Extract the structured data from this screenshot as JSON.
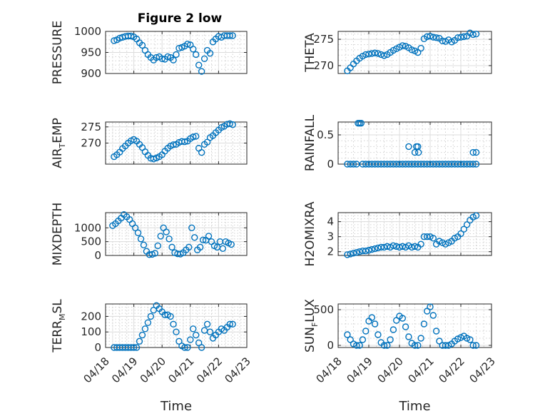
{
  "figure": {
    "title": "Figure 2 low",
    "marker_color": "#0072BD",
    "x_tick_labels": [
      "04/18",
      "04/19",
      "04/20",
      "04/21",
      "04/22",
      "04/23"
    ]
  },
  "chart_data": [
    {
      "type": "scatter",
      "title": "Figure 2 low",
      "ylabel": "PRESSURE",
      "xlabel": "",
      "xlim": [
        0,
        5
      ],
      "ylim": [
        900,
        1000
      ],
      "yticks": [
        900,
        950,
        1000
      ],
      "grid": true,
      "x": [
        0.3,
        0.4,
        0.5,
        0.6,
        0.7,
        0.8,
        0.9,
        1.0,
        1.1,
        1.2,
        1.3,
        1.4,
        1.5,
        1.6,
        1.7,
        1.8,
        1.9,
        2.0,
        2.1,
        2.2,
        2.3,
        2.4,
        2.5,
        2.6,
        2.7,
        2.8,
        2.9,
        3.0,
        3.1,
        3.2,
        3.3,
        3.4,
        3.5,
        3.6,
        3.7,
        3.8,
        3.9,
        4.0,
        4.1,
        4.2,
        4.3,
        4.4,
        4.5
      ],
      "y": [
        978,
        980,
        984,
        986,
        988,
        989,
        989,
        987,
        982,
        973,
        967,
        955,
        945,
        938,
        932,
        938,
        940,
        935,
        934,
        940,
        938,
        932,
        945,
        960,
        962,
        965,
        970,
        968,
        958,
        945,
        920,
        905,
        935,
        955,
        948,
        975,
        982,
        988,
        986,
        990,
        990,
        990,
        990
      ]
    },
    {
      "type": "scatter",
      "ylabel": "THETA",
      "xlabel": "",
      "xlim": [
        0,
        5
      ],
      "ylim": [
        268.5,
        276.5
      ],
      "yticks": [
        270,
        275
      ],
      "grid": true,
      "x": [
        0.3,
        0.4,
        0.5,
        0.6,
        0.7,
        0.8,
        0.9,
        1.0,
        1.1,
        1.2,
        1.3,
        1.4,
        1.5,
        1.6,
        1.7,
        1.8,
        1.9,
        2.0,
        2.1,
        2.2,
        2.3,
        2.4,
        2.5,
        2.6,
        2.7,
        2.8,
        2.9,
        3.0,
        3.1,
        3.2,
        3.3,
        3.4,
        3.5,
        3.6,
        3.7,
        3.8,
        3.9,
        4.0,
        4.1,
        4.2,
        4.3,
        4.4,
        4.5
      ],
      "y": [
        269,
        269.6,
        270.3,
        270.9,
        271.4,
        271.8,
        272.1,
        272.2,
        272.3,
        272.4,
        272.3,
        272.1,
        271.9,
        272.1,
        272.5,
        272.9,
        273.2,
        273.5,
        273.8,
        273.7,
        273.4,
        273,
        272.8,
        272.5,
        273.3,
        275.1,
        275.5,
        275.6,
        275.4,
        275.3,
        275.2,
        274.7,
        274.6,
        274.9,
        274.5,
        274.8,
        275.3,
        275.4,
        275.5,
        275.6,
        276.2,
        275.9,
        276
      ]
    },
    {
      "type": "scatter",
      "ylabel": "AIR_TEMP",
      "xlabel": "",
      "xlim": [
        0,
        5
      ],
      "ylim": [
        263.5,
        276.5
      ],
      "yticks": [
        270,
        275
      ],
      "grid": true,
      "x": [
        0.3,
        0.4,
        0.5,
        0.6,
        0.7,
        0.8,
        0.9,
        1.0,
        1.1,
        1.2,
        1.3,
        1.4,
        1.5,
        1.6,
        1.7,
        1.8,
        1.9,
        2.0,
        2.1,
        2.2,
        2.3,
        2.4,
        2.5,
        2.6,
        2.7,
        2.8,
        2.9,
        3.0,
        3.1,
        3.2,
        3.3,
        3.4,
        3.5,
        3.6,
        3.7,
        3.8,
        3.9,
        4.0,
        4.1,
        4.2,
        4.3,
        4.4,
        4.5
      ],
      "y": [
        265.8,
        266.4,
        267.2,
        268.3,
        269.1,
        270,
        270.7,
        271.1,
        270.6,
        269.6,
        268.6,
        267.3,
        266.2,
        265.3,
        265.1,
        265.4,
        265.8,
        266.4,
        267.5,
        268.4,
        269.1,
        269.5,
        269.6,
        270.2,
        270.5,
        270.4,
        270.6,
        271.4,
        271.9,
        272.1,
        268.4,
        267.1,
        269.6,
        270.3,
        271.7,
        272.3,
        273.2,
        274,
        274.8,
        275.2,
        275.8,
        276,
        275.7
      ]
    },
    {
      "type": "scatter",
      "ylabel": "RAINFALL",
      "xlabel": "",
      "xlim": [
        0,
        5
      ],
      "ylim": [
        0,
        0.72
      ],
      "yticks": [
        0,
        0.5
      ],
      "grid": true,
      "x": [
        0.3,
        0.4,
        0.5,
        0.6,
        0.65,
        0.7,
        0.75,
        0.8,
        0.9,
        1.0,
        1.1,
        1.2,
        1.3,
        1.4,
        1.5,
        1.6,
        1.7,
        1.8,
        1.9,
        2.0,
        2.1,
        2.2,
        2.3,
        2.4,
        2.5,
        2.6,
        2.7,
        2.8,
        2.9,
        3.0,
        3.1,
        3.2,
        3.3,
        3.4,
        3.5,
        3.6,
        3.7,
        3.8,
        3.9,
        4.0,
        4.1,
        4.2,
        4.3,
        4.4,
        4.5
      ],
      "y": [
        0,
        0,
        0,
        0,
        0.7,
        0.7,
        0.7,
        0,
        0,
        0,
        0,
        0,
        0,
        0,
        0,
        0,
        0,
        0,
        0,
        0,
        0,
        0,
        0,
        0,
        0,
        0,
        0,
        0,
        0,
        0,
        0,
        0,
        0,
        0,
        0,
        0,
        0,
        0,
        0,
        0,
        0,
        0,
        0,
        0,
        0
      ],
      "extra_points": [
        {
          "x": 2.3,
          "y": 0.3
        },
        {
          "x": 2.5,
          "y": 0.2
        },
        {
          "x": 2.55,
          "y": 0.3
        },
        {
          "x": 2.6,
          "y": 0.3
        },
        {
          "x": 2.62,
          "y": 0.2
        },
        {
          "x": 4.4,
          "y": 0.2
        },
        {
          "x": 4.5,
          "y": 0.2
        }
      ]
    },
    {
      "type": "scatter",
      "ylabel": "MIXDEPTH",
      "xlabel": "",
      "xlim": [
        0,
        5
      ],
      "ylim": [
        0,
        1550
      ],
      "yticks": [
        0,
        500,
        1000
      ],
      "grid": true,
      "x": [
        0.25,
        0.35,
        0.45,
        0.55,
        0.65,
        0.75,
        0.85,
        0.95,
        1.05,
        1.15,
        1.25,
        1.35,
        1.45,
        1.55,
        1.65,
        1.75,
        1.85,
        1.95,
        2.05,
        2.15,
        2.25,
        2.35,
        2.45,
        2.55,
        2.65,
        2.75,
        2.85,
        2.95,
        3.05,
        3.15,
        3.25,
        3.35,
        3.45,
        3.55,
        3.65,
        3.75,
        3.85,
        3.95,
        4.05,
        4.15,
        4.25,
        4.35,
        4.45
      ],
      "y": [
        1080,
        1150,
        1250,
        1350,
        1480,
        1400,
        1300,
        1150,
        1000,
        820,
        600,
        380,
        150,
        30,
        40,
        80,
        350,
        700,
        1000,
        850,
        600,
        300,
        100,
        60,
        50,
        100,
        200,
        300,
        1000,
        650,
        200,
        300,
        560,
        550,
        700,
        500,
        350,
        300,
        500,
        250,
        500,
        450,
        400
      ]
    },
    {
      "type": "scatter",
      "ylabel": "H2OMIXRA",
      "xlabel": "",
      "xlim": [
        0,
        5
      ],
      "ylim": [
        1.75,
        4.6
      ],
      "yticks": [
        2,
        3,
        4
      ],
      "grid": true,
      "x": [
        0.3,
        0.4,
        0.5,
        0.6,
        0.7,
        0.8,
        0.9,
        1.0,
        1.1,
        1.2,
        1.3,
        1.4,
        1.5,
        1.6,
        1.7,
        1.8,
        1.9,
        2.0,
        2.1,
        2.2,
        2.3,
        2.4,
        2.5,
        2.6,
        2.7,
        2.8,
        2.9,
        3.0,
        3.1,
        3.2,
        3.3,
        3.4,
        3.5,
        3.6,
        3.7,
        3.8,
        3.9,
        4.0,
        4.1,
        4.2,
        4.3,
        4.4,
        4.5
      ],
      "y": [
        1.8,
        1.85,
        1.9,
        1.95,
        2.0,
        2.05,
        2.05,
        2.1,
        2.15,
        2.2,
        2.25,
        2.3,
        2.3,
        2.35,
        2.3,
        2.4,
        2.35,
        2.3,
        2.35,
        2.3,
        2.4,
        2.3,
        2.35,
        2.3,
        2.5,
        3.0,
        3.0,
        3.0,
        2.9,
        2.5,
        2.7,
        2.6,
        2.5,
        2.6,
        2.7,
        2.9,
        3.0,
        3.2,
        3.5,
        3.8,
        4.1,
        4.3,
        4.4
      ]
    },
    {
      "type": "scatter",
      "ylabel": "TERR_MSL",
      "xlabel": "Time",
      "xlim": [
        0,
        5
      ],
      "ylim": [
        0,
        280
      ],
      "yticks": [
        0,
        100,
        200
      ],
      "grid": true,
      "x": [
        0.3,
        0.4,
        0.5,
        0.6,
        0.7,
        0.8,
        0.9,
        1.0,
        1.1,
        1.2,
        1.3,
        1.4,
        1.5,
        1.6,
        1.7,
        1.8,
        1.9,
        2.0,
        2.1,
        2.2,
        2.3,
        2.4,
        2.5,
        2.6,
        2.7,
        2.8,
        2.9,
        3.0,
        3.1,
        3.2,
        3.3,
        3.4,
        3.5,
        3.6,
        3.7,
        3.8,
        3.9,
        4.0,
        4.1,
        4.2,
        4.3,
        4.4,
        4.5
      ],
      "y": [
        0,
        0,
        0,
        0,
        0,
        0,
        0,
        0,
        0,
        40,
        80,
        120,
        160,
        200,
        240,
        270,
        250,
        230,
        210,
        210,
        200,
        150,
        100,
        40,
        10,
        0,
        0,
        50,
        120,
        80,
        30,
        0,
        110,
        150,
        100,
        60,
        80,
        100,
        120,
        110,
        130,
        150,
        150
      ]
    },
    {
      "type": "scatter",
      "ylabel": "SUN_FLUX",
      "xlabel": "Time",
      "xlim": [
        0,
        5
      ],
      "ylim": [
        -30,
        580
      ],
      "yticks": [
        0,
        500
      ],
      "grid": true,
      "x": [
        0.3,
        0.4,
        0.5,
        0.6,
        0.7,
        0.8,
        0.9,
        1.0,
        1.1,
        1.2,
        1.3,
        1.4,
        1.5,
        1.6,
        1.7,
        1.8,
        1.9,
        2.0,
        2.1,
        2.2,
        2.3,
        2.4,
        2.5,
        2.6,
        2.7,
        2.8,
        2.9,
        3.0,
        3.1,
        3.2,
        3.3,
        3.4,
        3.5,
        3.6,
        3.7,
        3.8,
        3.9,
        4.0,
        4.1,
        4.2,
        4.3,
        4.4,
        4.5
      ],
      "y": [
        150,
        80,
        20,
        0,
        0,
        80,
        200,
        340,
        390,
        300,
        150,
        40,
        0,
        0,
        80,
        220,
        350,
        410,
        380,
        260,
        120,
        30,
        0,
        0,
        100,
        300,
        480,
        540,
        420,
        200,
        60,
        0,
        0,
        0,
        20,
        60,
        90,
        110,
        130,
        100,
        80,
        0,
        0
      ]
    }
  ]
}
